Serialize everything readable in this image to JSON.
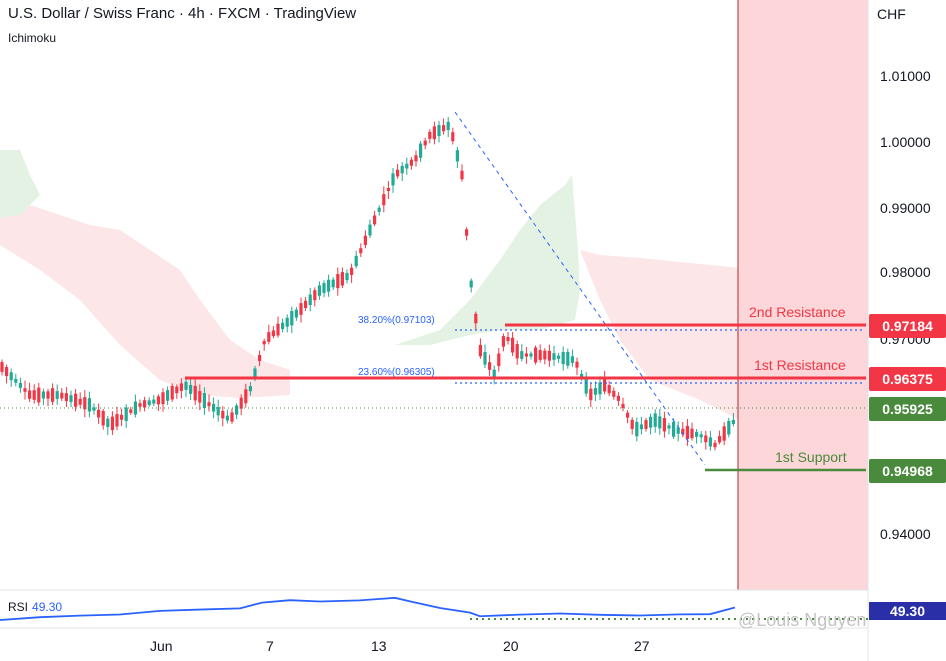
{
  "header": {
    "title": "U.S. Dollar / Swiss Franc · 4h · FXCM · TradingView",
    "indicator": "Ichimoku"
  },
  "price_axis": {
    "currency": "CHF",
    "ticks": [
      "1.01000",
      "1.00000",
      "0.99000",
      "0.98000",
      "0.97000",
      "0.94000"
    ]
  },
  "time_axis": {
    "ticks": [
      "Jun",
      "7",
      "13",
      "20",
      "27"
    ]
  },
  "levels": {
    "resistance2": {
      "label": "2nd Resistance",
      "price": "0.97184",
      "color": "#f23645"
    },
    "resistance1": {
      "label": "1st Resistance",
      "price": "0.96375",
      "color": "#f23645"
    },
    "current": {
      "price": "0.95925",
      "color": "#4a8a3c"
    },
    "support1": {
      "label": "1st Support",
      "price": "0.94968",
      "color": "#4a8a3c"
    }
  },
  "fib": {
    "f382": "38.20%(0.97103)",
    "f236": "23.60%(0.96305)"
  },
  "rsi": {
    "label": "RSI",
    "value": "49.30"
  },
  "watermark": "@Louis Nguyen",
  "colors": {
    "bull": "#22ab94",
    "bear": "#f23645",
    "accent": "#2962ff",
    "zone": "#fcd6d8"
  }
}
